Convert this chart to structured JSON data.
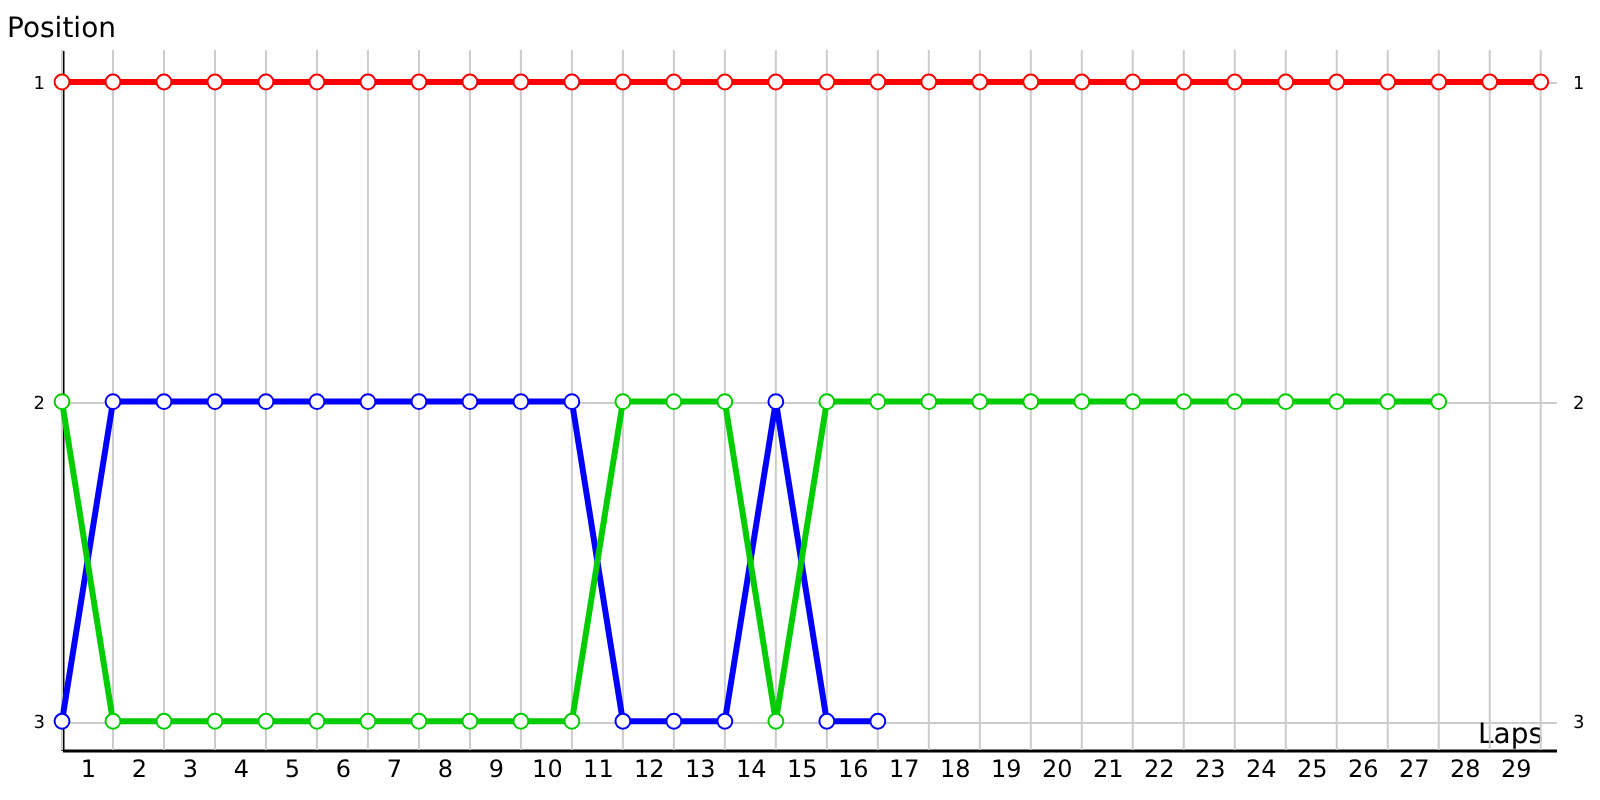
{
  "chart_data": {
    "type": "line",
    "xlabel": "Laps",
    "ylabel": "Position",
    "xlim": [
      0,
      29.3
    ],
    "xticks": [
      {
        "value": 0,
        "label": null
      },
      {
        "value": 0.5,
        "label": "1"
      },
      {
        "value": 1,
        "label": null
      },
      {
        "value": 1.5,
        "label": "2"
      },
      {
        "value": 2,
        "label": null
      },
      {
        "value": 2.5,
        "label": "3"
      },
      {
        "value": 3,
        "label": null
      },
      {
        "value": 3.5,
        "label": "4"
      },
      {
        "value": 4,
        "label": null
      },
      {
        "value": 4.5,
        "label": "5"
      },
      {
        "value": 5,
        "label": null
      },
      {
        "value": 5.5,
        "label": "6"
      },
      {
        "value": 6,
        "label": null
      },
      {
        "value": 6.5,
        "label": "7"
      },
      {
        "value": 7,
        "label": null
      },
      {
        "value": 7.5,
        "label": "8"
      },
      {
        "value": 8,
        "label": null
      },
      {
        "value": 8.5,
        "label": "9"
      },
      {
        "value": 9,
        "label": null
      },
      {
        "value": 9.5,
        "label": "10"
      },
      {
        "value": 10,
        "label": null
      },
      {
        "value": 10.5,
        "label": "11"
      },
      {
        "value": 11,
        "label": null
      },
      {
        "value": 11.5,
        "label": "12"
      },
      {
        "value": 12,
        "label": null
      },
      {
        "value": 12.5,
        "label": "13"
      },
      {
        "value": 13,
        "label": null
      },
      {
        "value": 13.5,
        "label": "14"
      },
      {
        "value": 14,
        "label": null
      },
      {
        "value": 14.5,
        "label": "15"
      },
      {
        "value": 15,
        "label": null
      },
      {
        "value": 15.5,
        "label": "16"
      },
      {
        "value": 16,
        "label": null
      },
      {
        "value": 16.5,
        "label": "17"
      },
      {
        "value": 17,
        "label": null
      },
      {
        "value": 17.5,
        "label": "18"
      },
      {
        "value": 18,
        "label": null
      },
      {
        "value": 18.5,
        "label": "19"
      },
      {
        "value": 19,
        "label": null
      },
      {
        "value": 19.5,
        "label": "20"
      },
      {
        "value": 20,
        "label": null
      },
      {
        "value": 20.5,
        "label": "21"
      },
      {
        "value": 21,
        "label": null
      },
      {
        "value": 21.5,
        "label": "22"
      },
      {
        "value": 22,
        "label": null
      },
      {
        "value": 22.5,
        "label": "23"
      },
      {
        "value": 23,
        "label": null
      },
      {
        "value": 23.5,
        "label": "24"
      },
      {
        "value": 24,
        "label": null
      },
      {
        "value": 24.5,
        "label": "25"
      },
      {
        "value": 25,
        "label": null
      },
      {
        "value": 25.5,
        "label": "26"
      },
      {
        "value": 26,
        "label": null
      },
      {
        "value": 26.5,
        "label": "27"
      },
      {
        "value": 27,
        "label": null
      },
      {
        "value": 27.5,
        "label": "28"
      },
      {
        "value": 28,
        "label": null
      },
      {
        "value": 28.5,
        "label": "29"
      },
      {
        "value": 29,
        "label": null
      }
    ],
    "ylim": [
      3.09,
      0.9
    ],
    "yticks": [
      1,
      2,
      3
    ],
    "y2lim": [
      3.09,
      0.9
    ],
    "y2ticks": [
      1,
      2,
      3
    ],
    "grid": true,
    "marker": "circle",
    "line_style": "solid",
    "legend": false,
    "series": [
      {
        "color": "#ff0000",
        "x": [
          0,
          1,
          2,
          3,
          4,
          5,
          6,
          7,
          8,
          9,
          10,
          11,
          12,
          13,
          14,
          15,
          16,
          17,
          18,
          19,
          20,
          21,
          22,
          23,
          24,
          25,
          26,
          27,
          28,
          29
        ],
        "values": [
          1,
          1,
          1,
          1,
          1,
          1,
          1,
          1,
          1,
          1,
          1,
          1,
          1,
          1,
          1,
          1,
          1,
          1,
          1,
          1,
          1,
          1,
          1,
          1,
          1,
          1,
          1,
          1,
          1,
          1
        ]
      },
      {
        "color": "#0000ff",
        "x": [
          0,
          1,
          2,
          3,
          4,
          5,
          6,
          7,
          8,
          9,
          10,
          11,
          12,
          13,
          14,
          15,
          16
        ],
        "values": [
          3,
          2,
          2,
          2,
          2,
          2,
          2,
          2,
          2,
          2,
          2,
          3,
          3,
          3,
          2,
          3,
          3
        ]
      },
      {
        "color": "#00cc00",
        "x": [
          0,
          1,
          2,
          3,
          4,
          5,
          6,
          7,
          8,
          9,
          10,
          11,
          12,
          13,
          14,
          15,
          16,
          17,
          18,
          19,
          20,
          21,
          22,
          23,
          24,
          25,
          26,
          27
        ],
        "values": [
          2,
          3,
          3,
          3,
          3,
          3,
          3,
          3,
          3,
          3,
          3,
          2,
          2,
          2,
          3,
          2,
          2,
          2,
          2,
          2,
          2,
          2,
          2,
          2,
          2,
          2,
          2,
          2
        ]
      }
    ]
  }
}
